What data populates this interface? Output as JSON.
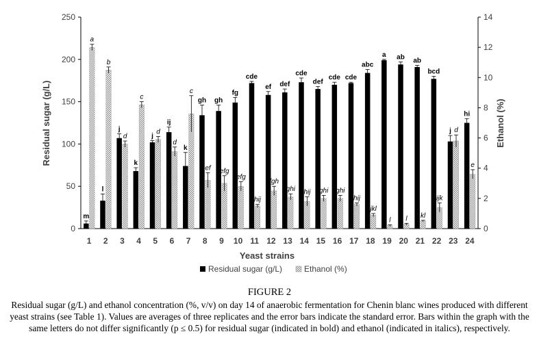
{
  "figure_label": "FIGURE 2",
  "caption": "Residual sugar (g/L) and ethanol concentration (%, v/v) on day 14 of anaerobic fermentation for Chenin blanc wines produced with different yeast strains (see Table 1). Values are averages of three replicates and the error bars indicate the standard error. Bars within the graph with the same letters do not differ significantly (p ≤ 0.5) for residual sugar (indicated in bold) and ethanol (indicated in italics), respectively.",
  "chart_data": {
    "type": "bar",
    "xlabel": "Yeast strains",
    "ylabel": "Residual sugar (g/L)",
    "y2label": "Ethanol (%)",
    "ylim": [
      0,
      250
    ],
    "yticks": [
      "0",
      "50",
      "100",
      "150",
      "200",
      "250"
    ],
    "y2lim": [
      0,
      14
    ],
    "y2ticks": [
      "0",
      "2",
      "4",
      "6",
      "8",
      "10",
      "12",
      "14"
    ],
    "categories": [
      "1",
      "2",
      "3",
      "4",
      "5",
      "6",
      "7",
      "8",
      "9",
      "10",
      "11",
      "12",
      "13",
      "14",
      "15",
      "16",
      "17",
      "18",
      "19",
      "20",
      "21",
      "22",
      "23",
      "24"
    ],
    "legend_position": "bottom",
    "series": [
      {
        "name": "Residual sugar (g/L)",
        "axis": "left",
        "color": "#000000",
        "values": [
          6,
          33,
          107,
          68,
          102,
          114,
          74,
          134,
          139,
          149,
          172,
          158,
          161,
          173,
          165,
          170,
          172,
          184,
          199,
          194,
          191,
          177,
          103,
          125
        ],
        "errors": [
          3,
          8,
          5,
          4,
          2,
          6,
          16,
          12,
          7,
          6,
          2,
          4,
          4,
          5,
          3,
          3,
          1,
          4,
          1,
          3,
          2,
          3,
          7,
          5
        ],
        "letters": [
          "m",
          "l",
          "j",
          "k",
          "j",
          "ij",
          "k",
          "gh",
          "gh",
          "fg",
          "cde",
          "ef",
          "def",
          "cde",
          "def",
          "cde",
          "cde",
          "abc",
          "a",
          "ab",
          "ab",
          "bcd",
          "j",
          "hi"
        ]
      },
      {
        "name": "Ethanol (%)",
        "axis": "right",
        "color": "#b0b0b0",
        "values": [
          12.0,
          10.5,
          5.6,
          8.2,
          5.9,
          5.1,
          7.6,
          3.2,
          3.0,
          2.8,
          1.5,
          2.5,
          2.1,
          1.8,
          2.0,
          2.0,
          1.6,
          0.9,
          0.2,
          0.3,
          0.5,
          1.4,
          5.8,
          3.6
        ],
        "errors": [
          0.2,
          0.2,
          0.2,
          0.2,
          0.2,
          0.3,
          1.2,
          0.5,
          0.5,
          0.3,
          0.1,
          0.3,
          0.2,
          0.3,
          0.2,
          0.2,
          0.1,
          0.1,
          0.05,
          0.05,
          0.05,
          0.3,
          0.4,
          0.3
        ],
        "letters": [
          "a",
          "b",
          "d",
          "c",
          "d",
          "d",
          "c",
          "ef",
          "efg",
          "efg",
          "hij",
          "fgh",
          "ghi",
          "hij",
          "ghi",
          "ghi",
          "hij",
          "jkl",
          "l",
          "l",
          "kl",
          "ijk",
          "d",
          "e"
        ]
      }
    ]
  }
}
